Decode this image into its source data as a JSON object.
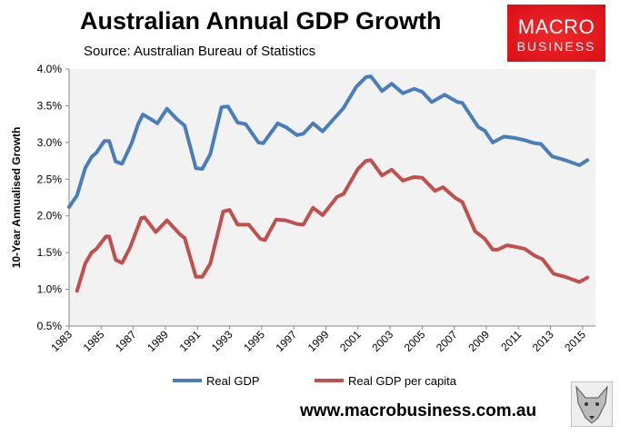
{
  "header": {
    "title": "Australian Annual GDP Growth",
    "subtitle": "Source: Australian Bureau of Statistics"
  },
  "logo": {
    "line1": "MACRO",
    "line2": "BUSINESS",
    "color": "#e01b1f"
  },
  "footer": {
    "url": "www.macrobusiness.com.au",
    "icon": "wolf-icon"
  },
  "chart_data": {
    "type": "line",
    "title": "Australian Annual GDP Growth",
    "ylabel": "10-Year Annualised Growth",
    "xlabel": "",
    "ylim": [
      0.5,
      4.0
    ],
    "yticks": [
      "0.5%",
      "1.0%",
      "1.5%",
      "2.0%",
      "2.5%",
      "3.0%",
      "3.5%",
      "4.0%"
    ],
    "xticks": [
      "1983",
      "1985",
      "1987",
      "1989",
      "1991",
      "1993",
      "1995",
      "1997",
      "1999",
      "2001",
      "2003",
      "2005",
      "2007",
      "2009",
      "2011",
      "2013",
      "2015"
    ],
    "xlim": [
      1983,
      2015.8
    ],
    "grid": false,
    "legend": "bottom",
    "background": "#f2f2f2",
    "series": [
      {
        "name": "Real GDP",
        "color": "#4a7ebb",
        "points": [
          [
            1983.0,
            2.12
          ],
          [
            1983.5,
            2.28
          ],
          [
            1984.0,
            2.65
          ],
          [
            1984.4,
            2.8
          ],
          [
            1984.7,
            2.86
          ],
          [
            1985.2,
            3.02
          ],
          [
            1985.5,
            3.02
          ],
          [
            1985.9,
            2.74
          ],
          [
            1986.3,
            2.71
          ],
          [
            1986.9,
            2.99
          ],
          [
            1987.3,
            3.25
          ],
          [
            1987.6,
            3.38
          ],
          [
            1988.0,
            3.33
          ],
          [
            1988.5,
            3.26
          ],
          [
            1989.1,
            3.46
          ],
          [
            1989.7,
            3.32
          ],
          [
            1990.2,
            3.23
          ],
          [
            1990.9,
            2.65
          ],
          [
            1991.3,
            2.64
          ],
          [
            1991.8,
            2.84
          ],
          [
            1992.5,
            3.48
          ],
          [
            1992.9,
            3.49
          ],
          [
            1993.5,
            3.27
          ],
          [
            1994.0,
            3.25
          ],
          [
            1994.8,
            3.0
          ],
          [
            1995.1,
            2.99
          ],
          [
            1996.0,
            3.26
          ],
          [
            1996.5,
            3.21
          ],
          [
            1997.2,
            3.1
          ],
          [
            1997.6,
            3.12
          ],
          [
            1998.2,
            3.26
          ],
          [
            1998.8,
            3.15
          ],
          [
            1999.7,
            3.37
          ],
          [
            2000.1,
            3.47
          ],
          [
            2000.9,
            3.76
          ],
          [
            2001.5,
            3.89
          ],
          [
            2001.8,
            3.9
          ],
          [
            2002.2,
            3.79
          ],
          [
            2002.5,
            3.7
          ],
          [
            2003.1,
            3.8
          ],
          [
            2003.8,
            3.67
          ],
          [
            2004.5,
            3.73
          ],
          [
            2005.0,
            3.69
          ],
          [
            2005.6,
            3.55
          ],
          [
            2006.4,
            3.65
          ],
          [
            2007.2,
            3.55
          ],
          [
            2007.5,
            3.54
          ],
          [
            2008.5,
            3.21
          ],
          [
            2008.9,
            3.16
          ],
          [
            2009.4,
            3.0
          ],
          [
            2010.1,
            3.08
          ],
          [
            2010.8,
            3.06
          ],
          [
            2011.4,
            3.03
          ],
          [
            2012.0,
            2.99
          ],
          [
            2012.4,
            2.98
          ],
          [
            2013.1,
            2.81
          ],
          [
            2013.9,
            2.76
          ],
          [
            2014.8,
            2.69
          ],
          [
            2015.3,
            2.76
          ]
        ]
      },
      {
        "name": "Real GDP per capita",
        "color": "#c0504d",
        "points": [
          [
            1983.5,
            0.98
          ],
          [
            1984.0,
            1.35
          ],
          [
            1984.4,
            1.5
          ],
          [
            1984.7,
            1.55
          ],
          [
            1985.3,
            1.72
          ],
          [
            1985.5,
            1.72
          ],
          [
            1985.9,
            1.4
          ],
          [
            1986.3,
            1.36
          ],
          [
            1986.8,
            1.57
          ],
          [
            1987.5,
            1.97
          ],
          [
            1987.7,
            1.98
          ],
          [
            1988.4,
            1.78
          ],
          [
            1989.1,
            1.94
          ],
          [
            1989.9,
            1.75
          ],
          [
            1990.2,
            1.7
          ],
          [
            1990.9,
            1.17
          ],
          [
            1991.3,
            1.17
          ],
          [
            1991.8,
            1.35
          ],
          [
            1992.6,
            2.06
          ],
          [
            1993.0,
            2.08
          ],
          [
            1993.5,
            1.88
          ],
          [
            1994.2,
            1.88
          ],
          [
            1994.9,
            1.69
          ],
          [
            1995.2,
            1.67
          ],
          [
            1995.9,
            1.95
          ],
          [
            1996.5,
            1.94
          ],
          [
            1997.2,
            1.89
          ],
          [
            1997.6,
            1.88
          ],
          [
            1998.2,
            2.11
          ],
          [
            1998.8,
            2.01
          ],
          [
            1999.7,
            2.26
          ],
          [
            2000.1,
            2.3
          ],
          [
            2001.0,
            2.64
          ],
          [
            2001.5,
            2.75
          ],
          [
            2001.8,
            2.76
          ],
          [
            2002.5,
            2.55
          ],
          [
            2003.1,
            2.63
          ],
          [
            2003.8,
            2.48
          ],
          [
            2004.5,
            2.53
          ],
          [
            2005.0,
            2.52
          ],
          [
            2005.8,
            2.34
          ],
          [
            2006.3,
            2.39
          ],
          [
            2007.1,
            2.24
          ],
          [
            2007.5,
            2.19
          ],
          [
            2008.3,
            1.79
          ],
          [
            2008.9,
            1.69
          ],
          [
            2009.4,
            1.54
          ],
          [
            2009.7,
            1.54
          ],
          [
            2010.3,
            1.6
          ],
          [
            2010.8,
            1.58
          ],
          [
            2011.4,
            1.55
          ],
          [
            2012.0,
            1.46
          ],
          [
            2012.5,
            1.41
          ],
          [
            2013.2,
            1.21
          ],
          [
            2013.9,
            1.17
          ],
          [
            2014.8,
            1.1
          ],
          [
            2015.3,
            1.16
          ]
        ]
      }
    ]
  }
}
